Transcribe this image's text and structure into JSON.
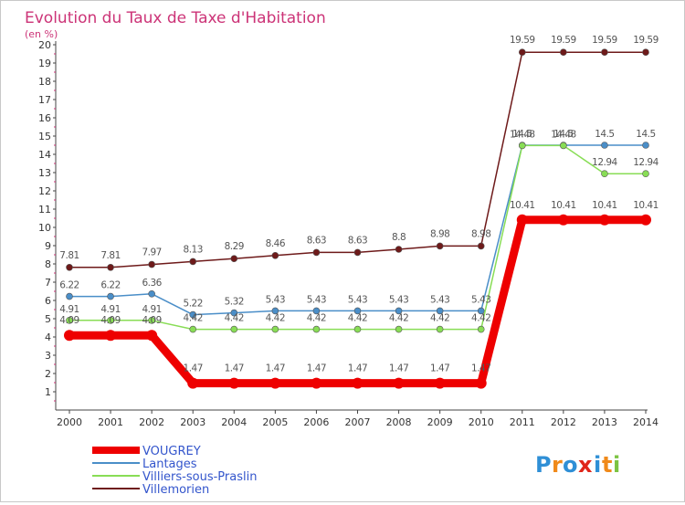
{
  "chart_data": {
    "type": "line",
    "title": "Evolution du Taux de Taxe d'Habitation",
    "subtitle": "(en %)",
    "x": [
      "2000",
      "2001",
      "2002",
      "2003",
      "2004",
      "2005",
      "2006",
      "2007",
      "2008",
      "2009",
      "2010",
      "2011",
      "2012",
      "2013",
      "2014"
    ],
    "ylim": [
      0,
      20
    ],
    "yticks": [
      1,
      2,
      3,
      4,
      5,
      6,
      7,
      8,
      9,
      10,
      11,
      12,
      13,
      14,
      15,
      16,
      17,
      18,
      19,
      20
    ],
    "grid": false,
    "legend_position": "bottom-left",
    "series": [
      {
        "name": "VOUGREY",
        "color": "#ee0000",
        "values": [
          4.09,
          4.09,
          4.09,
          1.47,
          1.47,
          1.47,
          1.47,
          1.47,
          1.47,
          1.47,
          1.47,
          10.41,
          10.41,
          10.41,
          10.41
        ]
      },
      {
        "name": "Lantages",
        "color": "#4a8ec8",
        "values": [
          6.22,
          6.22,
          6.36,
          5.22,
          5.32,
          5.43,
          5.43,
          5.43,
          5.43,
          5.43,
          5.43,
          14.5,
          14.5,
          14.5,
          14.5
        ]
      },
      {
        "name": "Villiers-sous-Praslin",
        "color": "#88dd55",
        "values": [
          4.91,
          4.91,
          4.91,
          4.42,
          4.42,
          4.42,
          4.42,
          4.42,
          4.42,
          4.42,
          4.42,
          14.48,
          14.48,
          12.94,
          12.94
        ]
      },
      {
        "name": "Villemorien",
        "color": "#6e1a1a",
        "values": [
          7.81,
          7.81,
          7.97,
          8.13,
          8.29,
          8.46,
          8.63,
          8.63,
          8.8,
          8.98,
          8.98,
          19.59,
          19.59,
          19.59,
          19.59
        ]
      }
    ],
    "data_labels": [
      {
        "series": "VOUGREY",
        "labels": [
          "4.09",
          "4.09",
          "4.09",
          "1.47",
          "1.47",
          "1.47",
          "1.47",
          "1.47",
          "1.47",
          "1.47",
          "1.47",
          "10.41",
          "10.41",
          "10.41",
          "10.41"
        ]
      },
      {
        "series": "Lantages",
        "labels": [
          "6.22",
          "6.22",
          "6.36",
          "5.22",
          "5.32",
          "5.43",
          "5.43",
          "5.43",
          "5.43",
          "5.43",
          "5.43",
          "14.5",
          "14.5",
          "14.5",
          "14.5"
        ]
      },
      {
        "series": "Villiers-sous-Praslin",
        "labels": [
          "4.91",
          "4.91",
          "4.91",
          "4.42",
          "4.42",
          "4.42",
          "4.42",
          "4.42",
          "4.42",
          "4.42",
          "4.42",
          "14.48",
          "14.48",
          "12.94",
          "12.94"
        ]
      },
      {
        "series": "Villemorien",
        "labels": [
          "7.81",
          "7.81",
          "7.97",
          "8.13",
          "8.29",
          "8.46",
          "8.63",
          "8.63",
          "8.8",
          "8.98",
          "8.98",
          "19.59",
          "19.59",
          "19.59",
          "19.59"
        ]
      }
    ]
  },
  "logo": {
    "text": "Proxiti"
  }
}
